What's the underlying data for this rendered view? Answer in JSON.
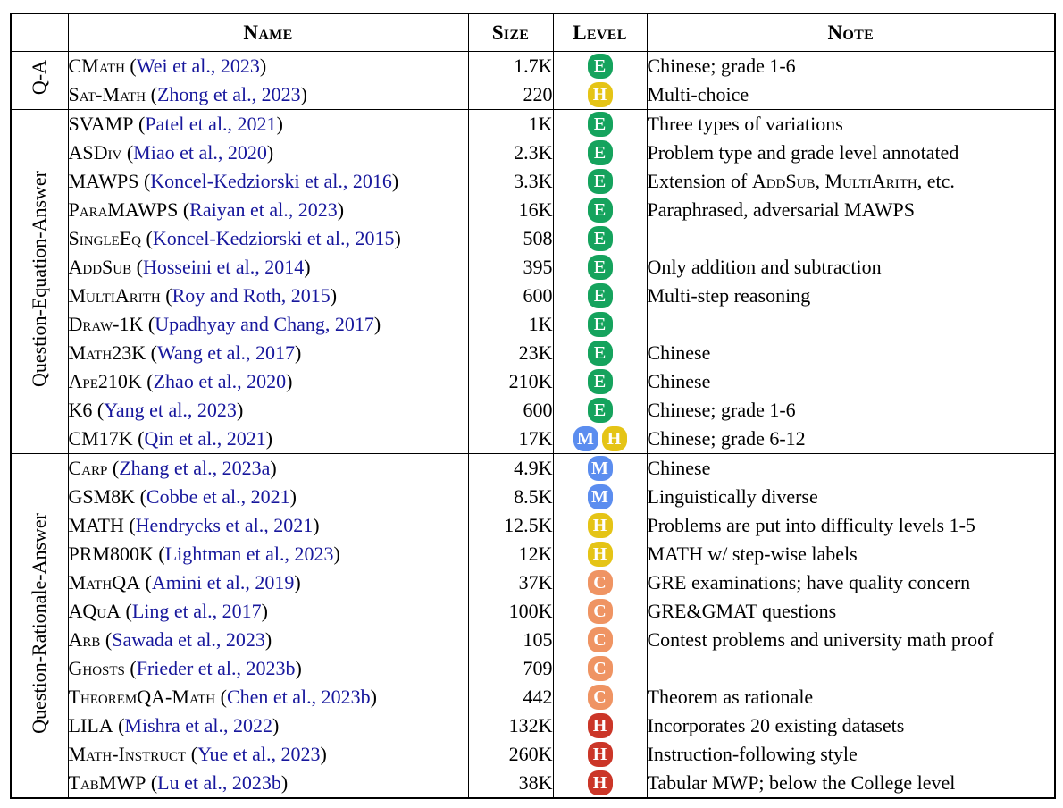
{
  "columns": {
    "group": "",
    "name": "Name",
    "size": "Size",
    "level": "Level",
    "note": "Note"
  },
  "level_legend": {
    "E": {
      "letter": "E",
      "color": "#15a35d"
    },
    "M": {
      "letter": "M",
      "color": "#5b8def"
    },
    "H": {
      "letter": "H",
      "color": "#e5c416"
    },
    "C": {
      "letter": "C",
      "color": "#ef9463"
    },
    "HY": {
      "letter": "H",
      "color": "#cb3628"
    }
  },
  "groups": [
    {
      "label": "Q-A",
      "rows": [
        {
          "name": "CMath",
          "cite": "Wei et al., 2023",
          "size": "1.7K",
          "levels": [
            "E"
          ],
          "note": "Chinese; grade 1-6"
        },
        {
          "name": "Sat-Math",
          "cite": "Zhong et al., 2023",
          "size": "220",
          "levels": [
            "H"
          ],
          "note": "Multi-choice"
        }
      ]
    },
    {
      "label": "Question-Equation-Answer",
      "rows": [
        {
          "name": "SVAMP",
          "cite": "Patel et al., 2021",
          "size": "1K",
          "levels": [
            "E"
          ],
          "note": "Three types of variations"
        },
        {
          "name": "ASDiv",
          "cite": "Miao et al., 2020",
          "size": "2.3K",
          "levels": [
            "E"
          ],
          "note": "Problem type and grade level annotated"
        },
        {
          "name": "MAWPS",
          "cite": "Koncel-Kedziorski et al., 2016",
          "size": "3.3K",
          "levels": [
            "E"
          ],
          "note": [
            {
              "t": "Extension of "
            },
            {
              "t": "AddSub",
              "sc": true
            },
            {
              "t": ", "
            },
            {
              "t": "MultiArith",
              "sc": true
            },
            {
              "t": ", etc."
            }
          ]
        },
        {
          "name": "ParaMAWPS",
          "cite": "Raiyan et al., 2023",
          "size": "16K",
          "levels": [
            "E"
          ],
          "note": "Paraphrased, adversarial MAWPS"
        },
        {
          "name": "SingleEq",
          "cite": "Koncel-Kedziorski et al., 2015",
          "size": "508",
          "levels": [
            "E"
          ],
          "note": ""
        },
        {
          "name": "AddSub",
          "cite": "Hosseini et al., 2014",
          "size": "395",
          "levels": [
            "E"
          ],
          "note": "Only addition and subtraction"
        },
        {
          "name": "MultiArith",
          "cite": "Roy and Roth, 2015",
          "size": "600",
          "levels": [
            "E"
          ],
          "note": "Multi-step reasoning"
        },
        {
          "name": "Draw-1K",
          "cite": "Upadhyay and Chang, 2017",
          "size": "1K",
          "levels": [
            "E"
          ],
          "note": ""
        },
        {
          "name": "Math23K",
          "cite": "Wang et al., 2017",
          "size": "23K",
          "levels": [
            "E"
          ],
          "note": "Chinese"
        },
        {
          "name": "Ape210K",
          "cite": "Zhao et al., 2020",
          "size": "210K",
          "levels": [
            "E"
          ],
          "note": "Chinese"
        },
        {
          "name": "K6",
          "cite": "Yang et al., 2023",
          "size": "600",
          "levels": [
            "E"
          ],
          "note": "Chinese; grade 1-6"
        },
        {
          "name": "CM17K",
          "cite": "Qin et al., 2021",
          "size": "17K",
          "levels": [
            "M",
            "H"
          ],
          "note": "Chinese; grade 6-12"
        }
      ]
    },
    {
      "label": "Question-Rationale-Answer",
      "rows": [
        {
          "name": "Carp",
          "cite": "Zhang et al., 2023a",
          "size": "4.9K",
          "levels": [
            "M"
          ],
          "note": "Chinese"
        },
        {
          "name": "GSM8K",
          "cite": "Cobbe et al., 2021",
          "size": "8.5K",
          "levels": [
            "M"
          ],
          "note": "Linguistically diverse"
        },
        {
          "name": "MATH",
          "cite": "Hendrycks et al., 2021",
          "size": "12.5K",
          "levels": [
            "H"
          ],
          "note": "Problems are put into difficulty levels 1-5"
        },
        {
          "name": "PRM800K",
          "cite": "Lightman et al., 2023",
          "size": "12K",
          "levels": [
            "H"
          ],
          "note": "MATH w/ step-wise labels"
        },
        {
          "name": "MathQA",
          "cite": "Amini et al., 2019",
          "size": "37K",
          "levels": [
            "C"
          ],
          "note": "GRE examinations; have quality concern"
        },
        {
          "name": "AQuA",
          "cite": "Ling et al., 2017",
          "size": "100K",
          "levels": [
            "C"
          ],
          "note": "GRE&GMAT questions"
        },
        {
          "name": "Arb",
          "cite": "Sawada et al., 2023",
          "size": "105",
          "levels": [
            "C"
          ],
          "note": "Contest problems and university math proof"
        },
        {
          "name": "Ghosts",
          "cite": "Frieder et al., 2023b",
          "size": "709",
          "levels": [
            "C"
          ],
          "note": ""
        },
        {
          "name": "TheoremQA-Math",
          "cite": "Chen et al., 2023b",
          "size": "442",
          "levels": [
            "C"
          ],
          "note": "Theorem as rationale"
        },
        {
          "name": "LILA",
          "cite": "Mishra et al., 2022",
          "size": "132K",
          "levels": [
            "HY"
          ],
          "note": "Incorporates 20 existing datasets"
        },
        {
          "name": "Math-Instruct",
          "cite": "Yue et al., 2023",
          "size": "260K",
          "levels": [
            "HY"
          ],
          "note": "Instruction-following style"
        },
        {
          "name": "TabMWP",
          "cite": "Lu et al., 2023b",
          "size": "38K",
          "levels": [
            "HY"
          ],
          "note": "Tabular MWP; below the College level"
        }
      ]
    }
  ]
}
